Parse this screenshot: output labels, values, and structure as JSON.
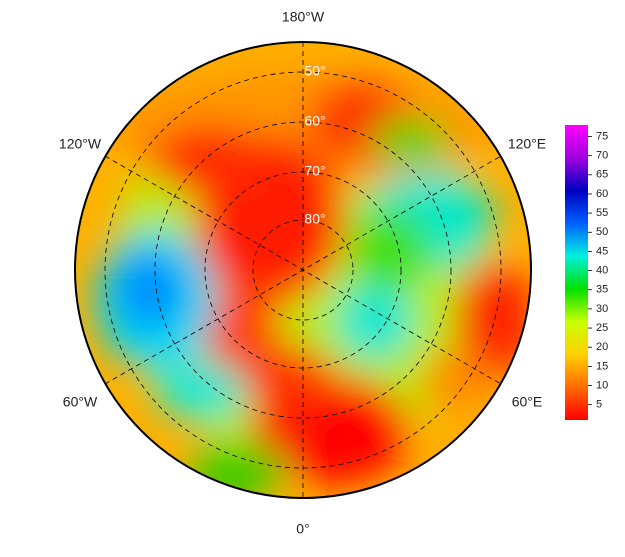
{
  "map": {
    "type": "polar-map",
    "lon_labels": [
      "180°W",
      "120°E",
      "60°E",
      "0°",
      "60°W",
      "120°W"
    ],
    "lat_labels": [
      "50°",
      "60°",
      "70°",
      "80°"
    ],
    "colorbar": {
      "lim": [
        1,
        78
      ],
      "ticks": [
        5,
        10,
        15,
        20,
        25,
        30,
        35,
        40,
        45,
        50,
        55,
        60,
        65,
        70,
        75
      ],
      "colors": [
        "#ff0000",
        "#ff6a00",
        "#ffd000",
        "#c8ff00",
        "#00e000",
        "#00f0e0",
        "#0060ff",
        "#0000c0",
        "#a000e0",
        "#ff00ff"
      ]
    }
  }
}
